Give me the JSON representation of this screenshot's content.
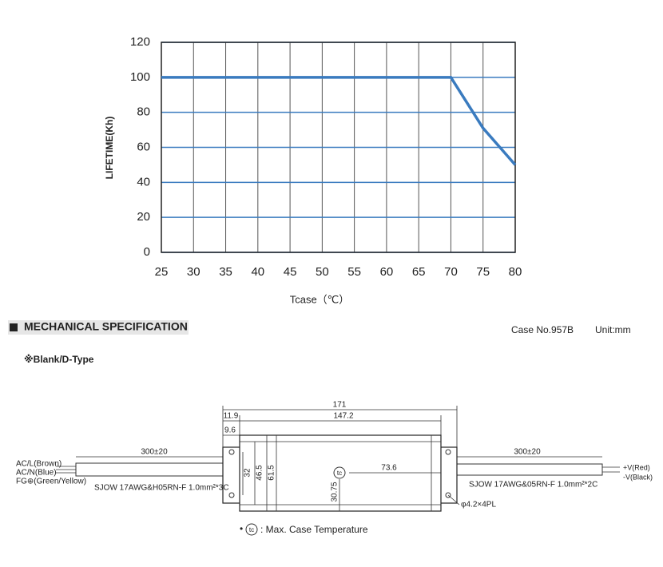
{
  "chart_data": {
    "type": "line",
    "ylabel": "LIFETIME(Kh)",
    "xlabel": "Tcase（℃）",
    "x": [
      25,
      70,
      75,
      80
    ],
    "values": [
      100,
      100,
      71,
      50
    ],
    "color": "#3a7bbf",
    "xlim": [
      25,
      80
    ],
    "xticks": [
      25,
      30,
      35,
      40,
      45,
      50,
      55,
      60,
      65,
      70,
      75,
      80
    ],
    "ylim": [
      0,
      120
    ],
    "yticks": [
      0,
      20,
      40,
      60,
      80,
      100,
      120
    ],
    "grid": true
  },
  "section": {
    "title": "MECHANICAL SPECIFICATION",
    "case": "Case No.957B",
    "unit": "Unit:mm",
    "subtype": "※Blank/D-Type"
  },
  "drawing": {
    "overall": "171",
    "offset": "11.9",
    "body_length": "147.2",
    "flange": "9.6",
    "cable_in_length": "300±20",
    "cable_out_length": "300±20",
    "hole_span": "32",
    "inner_width": "46.5",
    "width": "61.5",
    "tc_x": "73.6",
    "tc_y": "30.75",
    "tc": "tc",
    "ac_l": "AC/L(Brown)",
    "ac_n": "AC/N(Blue)",
    "fg": "FG⊕(Green/Yellow)",
    "cable_in": "SJOW 17AWG&H05RN-F  1.0mm²*3C",
    "cable_out": "SJOW 17AWG&05RN-F 1.0mm²*2C",
    "holes": "φ4.2×4PL",
    "v_pos": "+V(Red)",
    "v_neg": "-V(Black)",
    "note_bullet": "•",
    "note_tc": "tc",
    "note": ": Max. Case Temperature"
  }
}
